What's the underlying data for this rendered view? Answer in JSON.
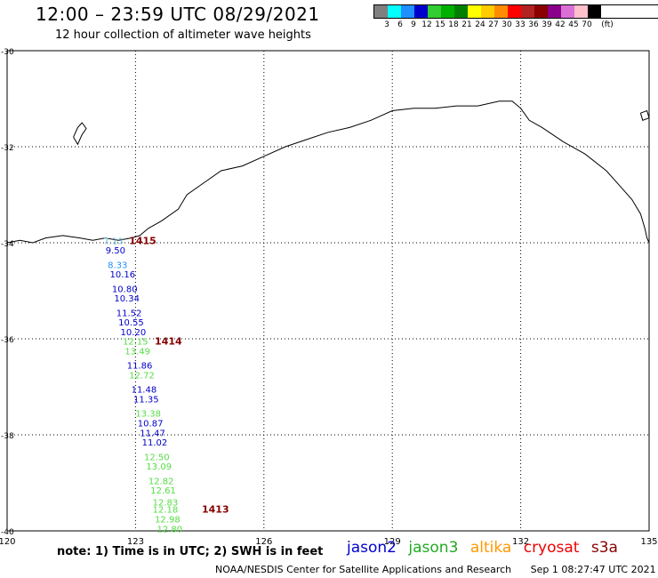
{
  "header": {
    "title": "12:00 – 23:59 UTC 08/29/2021",
    "subtitle": "12 hour collection of altimeter wave heights"
  },
  "color_legend": {
    "colors": [
      "#808080",
      "#00ffff",
      "#1e90ff",
      "#0000cd",
      "#32cd32",
      "#00b000",
      "#008000",
      "#ffff00",
      "#ffcc00",
      "#ff8c00",
      "#ff0000",
      "#b22222",
      "#8b0000",
      "#8b008b",
      "#da70d6",
      "#ffc0cb",
      "#000000"
    ],
    "labels": [
      "3",
      "6",
      "9",
      "12",
      "15",
      "18",
      "21",
      "24",
      "27",
      "30",
      "33",
      "36",
      "39",
      "42",
      "45",
      "70",
      "(ft)"
    ]
  },
  "footer": {
    "note": "note: 1) Time is in UTC; 2) SWH is in feet",
    "credit": "NOAA/NESDIS Center for Satellite Applications and Research",
    "timestamp": "Sep  1 08:27:47 UTC 2021",
    "satellites": [
      {
        "name": "jason2",
        "color": "#0000cc"
      },
      {
        "name": "jason3",
        "color": "#22aa22"
      },
      {
        "name": "altika",
        "color": "#ff9900"
      },
      {
        "name": "cryosat",
        "color": "#ee0000"
      },
      {
        "name": "s3a",
        "color": "#880000"
      }
    ]
  },
  "chart_data": {
    "type": "scatter",
    "title": "12:00 – 23:59 UTC 08/29/2021",
    "xlim": [
      120,
      135
    ],
    "ylim": [
      -40,
      -30
    ],
    "x_ticks": [
      120,
      123,
      126,
      129,
      132,
      135
    ],
    "y_ticks": [
      -30,
      -32,
      -34,
      -36,
      -38,
      -40
    ],
    "x_tick_labels": [
      "120",
      "123",
      "126",
      "129",
      "132",
      "135"
    ],
    "y_tick_labels": [
      "-30",
      "-32",
      "-34",
      "-36",
      "-38",
      "-40"
    ],
    "grid": true,
    "track_colors": {
      "jason3": "#55dd44",
      "cryosat": "#ee0000",
      "s3a": "#880000"
    },
    "swh_points": [
      {
        "lon": 122.25,
        "lat": -33.95,
        "swh": "7.13",
        "color": "#66bbdd"
      },
      {
        "lon": 122.3,
        "lat": -34.15,
        "swh": "9.50",
        "color": "#0000cc"
      },
      {
        "lon": 122.35,
        "lat": -34.45,
        "swh": "8.33",
        "color": "#1e90ff"
      },
      {
        "lon": 122.4,
        "lat": -34.65,
        "swh": "10.16",
        "color": "#0000cc"
      },
      {
        "lon": 122.45,
        "lat": -34.95,
        "swh": "10.80",
        "color": "#0000cc"
      },
      {
        "lon": 122.5,
        "lat": -35.15,
        "swh": "10.34",
        "color": "#0000cc"
      },
      {
        "lon": 122.55,
        "lat": -35.45,
        "swh": "11.52",
        "color": "#0000cc"
      },
      {
        "lon": 122.6,
        "lat": -35.65,
        "swh": "10.55",
        "color": "#0000cc"
      },
      {
        "lon": 122.65,
        "lat": -35.85,
        "swh": "10.20",
        "color": "#0000cc"
      },
      {
        "lon": 122.7,
        "lat": -36.05,
        "swh": "12.15",
        "color": "#55dd44"
      },
      {
        "lon": 122.75,
        "lat": -36.25,
        "swh": "13.49",
        "color": "#55dd44"
      },
      {
        "lon": 122.8,
        "lat": -36.55,
        "swh": "11.86",
        "color": "#0000cc"
      },
      {
        "lon": 122.85,
        "lat": -36.75,
        "swh": "12.72",
        "color": "#55dd44"
      },
      {
        "lon": 122.9,
        "lat": -37.05,
        "swh": "11.48",
        "color": "#0000cc"
      },
      {
        "lon": 122.95,
        "lat": -37.25,
        "swh": "11.35",
        "color": "#0000cc"
      },
      {
        "lon": 123.0,
        "lat": -37.55,
        "swh": "13.38",
        "color": "#55dd44"
      },
      {
        "lon": 123.05,
        "lat": -37.75,
        "swh": "10.87",
        "color": "#0000cc"
      },
      {
        "lon": 123.1,
        "lat": -37.95,
        "swh": "11.47",
        "color": "#0000cc"
      },
      {
        "lon": 123.15,
        "lat": -38.15,
        "swh": "11.02",
        "color": "#0000cc"
      },
      {
        "lon": 123.2,
        "lat": -38.45,
        "swh": "12.50",
        "color": "#55dd44"
      },
      {
        "lon": 123.25,
        "lat": -38.65,
        "swh": "13.09",
        "color": "#55dd44"
      },
      {
        "lon": 123.3,
        "lat": -38.95,
        "swh": "12.82",
        "color": "#55dd44"
      },
      {
        "lon": 123.35,
        "lat": -39.15,
        "swh": "12.61",
        "color": "#55dd44"
      },
      {
        "lon": 123.4,
        "lat": -39.4,
        "swh": "12.83",
        "color": "#55dd44"
      },
      {
        "lon": 123.4,
        "lat": -39.55,
        "swh": "12.18",
        "color": "#55dd44"
      },
      {
        "lon": 123.45,
        "lat": -39.75,
        "swh": "12.98",
        "color": "#55dd44"
      },
      {
        "lon": 123.5,
        "lat": -39.95,
        "swh": "12.80",
        "color": "#55dd44"
      }
    ],
    "time_labels": [
      {
        "lon": 122.85,
        "lat": -33.95,
        "text": "1415",
        "color": "#880000"
      },
      {
        "lon": 123.45,
        "lat": -36.05,
        "text": "1414",
        "color": "#880000"
      },
      {
        "lon": 124.55,
        "lat": -39.55,
        "text": "1413",
        "color": "#880000"
      }
    ],
    "coastline": [
      [
        120.0,
        -34.0
      ],
      [
        120.3,
        -33.95
      ],
      [
        120.6,
        -34.0
      ],
      [
        120.9,
        -33.9
      ],
      [
        121.3,
        -33.85
      ],
      [
        121.7,
        -33.9
      ],
      [
        122.0,
        -33.95
      ],
      [
        122.3,
        -33.9
      ],
      [
        122.6,
        -33.95
      ],
      [
        122.9,
        -33.9
      ],
      [
        123.1,
        -33.85
      ],
      [
        123.3,
        -33.7
      ],
      [
        123.6,
        -33.55
      ],
      [
        124.0,
        -33.3
      ],
      [
        124.2,
        -33.0
      ],
      [
        124.6,
        -32.75
      ],
      [
        125.0,
        -32.5
      ],
      [
        125.5,
        -32.4
      ],
      [
        126.0,
        -32.2
      ],
      [
        126.5,
        -32.0
      ],
      [
        127.0,
        -31.85
      ],
      [
        127.5,
        -31.7
      ],
      [
        128.0,
        -31.6
      ],
      [
        128.5,
        -31.45
      ],
      [
        129.0,
        -31.25
      ],
      [
        129.5,
        -31.2
      ],
      [
        130.0,
        -31.2
      ],
      [
        130.5,
        -31.15
      ],
      [
        131.0,
        -31.15
      ],
      [
        131.5,
        -31.05
      ],
      [
        131.8,
        -31.05
      ],
      [
        132.0,
        -31.2
      ],
      [
        132.2,
        -31.45
      ],
      [
        132.5,
        -31.6
      ],
      [
        133.0,
        -31.9
      ],
      [
        133.5,
        -32.15
      ],
      [
        134.0,
        -32.5
      ],
      [
        134.3,
        -32.8
      ],
      [
        134.6,
        -33.1
      ],
      [
        134.8,
        -33.4
      ],
      [
        134.9,
        -33.7
      ],
      [
        134.95,
        -33.9
      ],
      [
        135.0,
        -34.0
      ]
    ],
    "island": [
      [
        121.55,
        -31.8
      ],
      [
        121.65,
        -31.6
      ],
      [
        121.75,
        -31.5
      ],
      [
        121.85,
        -31.62
      ],
      [
        121.75,
        -31.75
      ],
      [
        121.65,
        -31.95
      ],
      [
        121.55,
        -31.8
      ]
    ],
    "right_edge_islands": [
      [
        [
          134.8,
          -31.3
        ],
        [
          134.95,
          -31.25
        ],
        [
          135.0,
          -31.4
        ],
        [
          134.85,
          -31.45
        ],
        [
          134.8,
          -31.3
        ]
      ]
    ]
  }
}
